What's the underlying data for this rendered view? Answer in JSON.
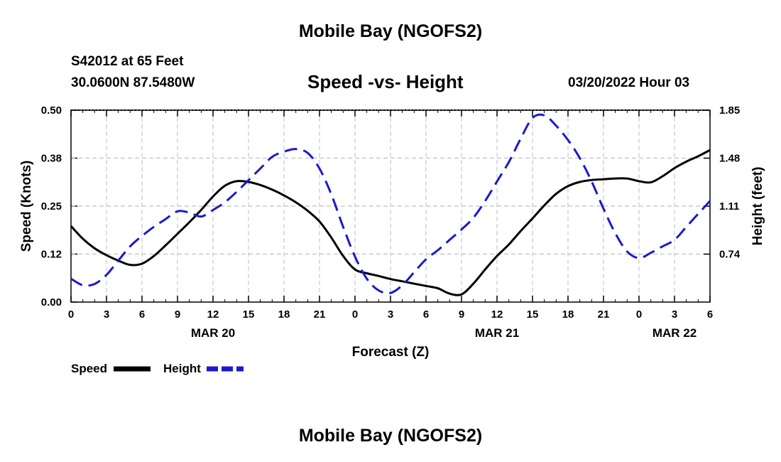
{
  "header": {
    "title": "Mobile Bay (NGOFS2)",
    "station": "S42012 at 65 Feet",
    "coordinates": "30.0600N  87.5480W",
    "chart_title": "Speed -vs- Height",
    "datestamp": "03/20/2022 Hour 03"
  },
  "footer": {
    "title": "Mobile Bay (NGOFS2)"
  },
  "colors": {
    "speed": "#000000",
    "height": "#1a1acc",
    "grid": "#c8c8c8"
  },
  "legend": {
    "speed": "Speed",
    "height": "Height"
  },
  "chart_data": {
    "type": "line",
    "xlabel": "Forecast (Z)",
    "ylabel": "Speed (Knots)",
    "y2label": "Height (feet)",
    "xlim": [
      0,
      54
    ],
    "ylim": [
      0,
      0.5
    ],
    "y2lim": [
      0.37,
      1.85
    ],
    "x_tick_labels": [
      "0",
      "3",
      "6",
      "9",
      "12",
      "15",
      "18",
      "21",
      "0",
      "3",
      "6",
      "9",
      "12",
      "15",
      "18",
      "21",
      "0",
      "3",
      "6"
    ],
    "date_labels": [
      {
        "x": 12,
        "label": "MAR 20"
      },
      {
        "x": 36,
        "label": "MAR 21"
      },
      {
        "x": 51,
        "label": "MAR 22"
      }
    ],
    "y_ticks": [
      "0.00",
      "0.12",
      "0.25",
      "0.38",
      "0.50"
    ],
    "y_tick_values": [
      0,
      0.125,
      0.25,
      0.375,
      0.5
    ],
    "y2_ticks": [
      "0.74",
      "1.11",
      "1.48",
      "1.85"
    ],
    "y2_tick_values": [
      0.74,
      1.11,
      1.48,
      1.85
    ],
    "grid": true,
    "series": [
      {
        "name": "Speed",
        "axis": "left",
        "style": "solid",
        "x": [
          0,
          1,
          2,
          3,
          4,
          5,
          6,
          7,
          8,
          9,
          10,
          11,
          12,
          13,
          14,
          15,
          16,
          17,
          18,
          19,
          20,
          21,
          22,
          23,
          24,
          25,
          26,
          27,
          28,
          29,
          30,
          31,
          32,
          33,
          34,
          35,
          36,
          37,
          38,
          39,
          40,
          41,
          42,
          43,
          44,
          45,
          46,
          47,
          48,
          49,
          50,
          51,
          52,
          53,
          54
        ],
        "values": [
          0.198,
          0.165,
          0.14,
          0.122,
          0.108,
          0.097,
          0.1,
          0.12,
          0.148,
          0.178,
          0.208,
          0.24,
          0.275,
          0.303,
          0.315,
          0.313,
          0.305,
          0.293,
          0.278,
          0.26,
          0.238,
          0.21,
          0.168,
          0.12,
          0.085,
          0.075,
          0.068,
          0.06,
          0.054,
          0.048,
          0.042,
          0.036,
          0.022,
          0.02,
          0.048,
          0.085,
          0.12,
          0.15,
          0.185,
          0.218,
          0.252,
          0.282,
          0.302,
          0.313,
          0.318,
          0.32,
          0.322,
          0.322,
          0.315,
          0.312,
          0.328,
          0.349,
          0.366,
          0.38,
          0.396
        ]
      },
      {
        "name": "Height",
        "axis": "right",
        "style": "dashed",
        "x": [
          0,
          1,
          2,
          3,
          4,
          5,
          6,
          7,
          8,
          9,
          10,
          11,
          12,
          13,
          14,
          15,
          16,
          17,
          18,
          19,
          20,
          21,
          22,
          23,
          24,
          25,
          26,
          27,
          28,
          29,
          30,
          31,
          32,
          33,
          34,
          35,
          36,
          37,
          38,
          39,
          40,
          41,
          42,
          43,
          44,
          45,
          46,
          47,
          48,
          49,
          50,
          51,
          52,
          53,
          54
        ],
        "values": [
          0.55,
          0.5,
          0.51,
          0.58,
          0.69,
          0.8,
          0.88,
          0.95,
          1.01,
          1.07,
          1.06,
          1.03,
          1.08,
          1.14,
          1.22,
          1.31,
          1.4,
          1.49,
          1.53,
          1.55,
          1.52,
          1.4,
          1.2,
          0.95,
          0.72,
          0.55,
          0.46,
          0.44,
          0.5,
          0.6,
          0.7,
          0.77,
          0.85,
          0.93,
          1.02,
          1.15,
          1.3,
          1.45,
          1.63,
          1.79,
          1.81,
          1.73,
          1.62,
          1.48,
          1.3,
          1.09,
          0.9,
          0.76,
          0.71,
          0.75,
          0.8,
          0.85,
          0.95,
          1.05,
          1.15
        ]
      }
    ]
  }
}
